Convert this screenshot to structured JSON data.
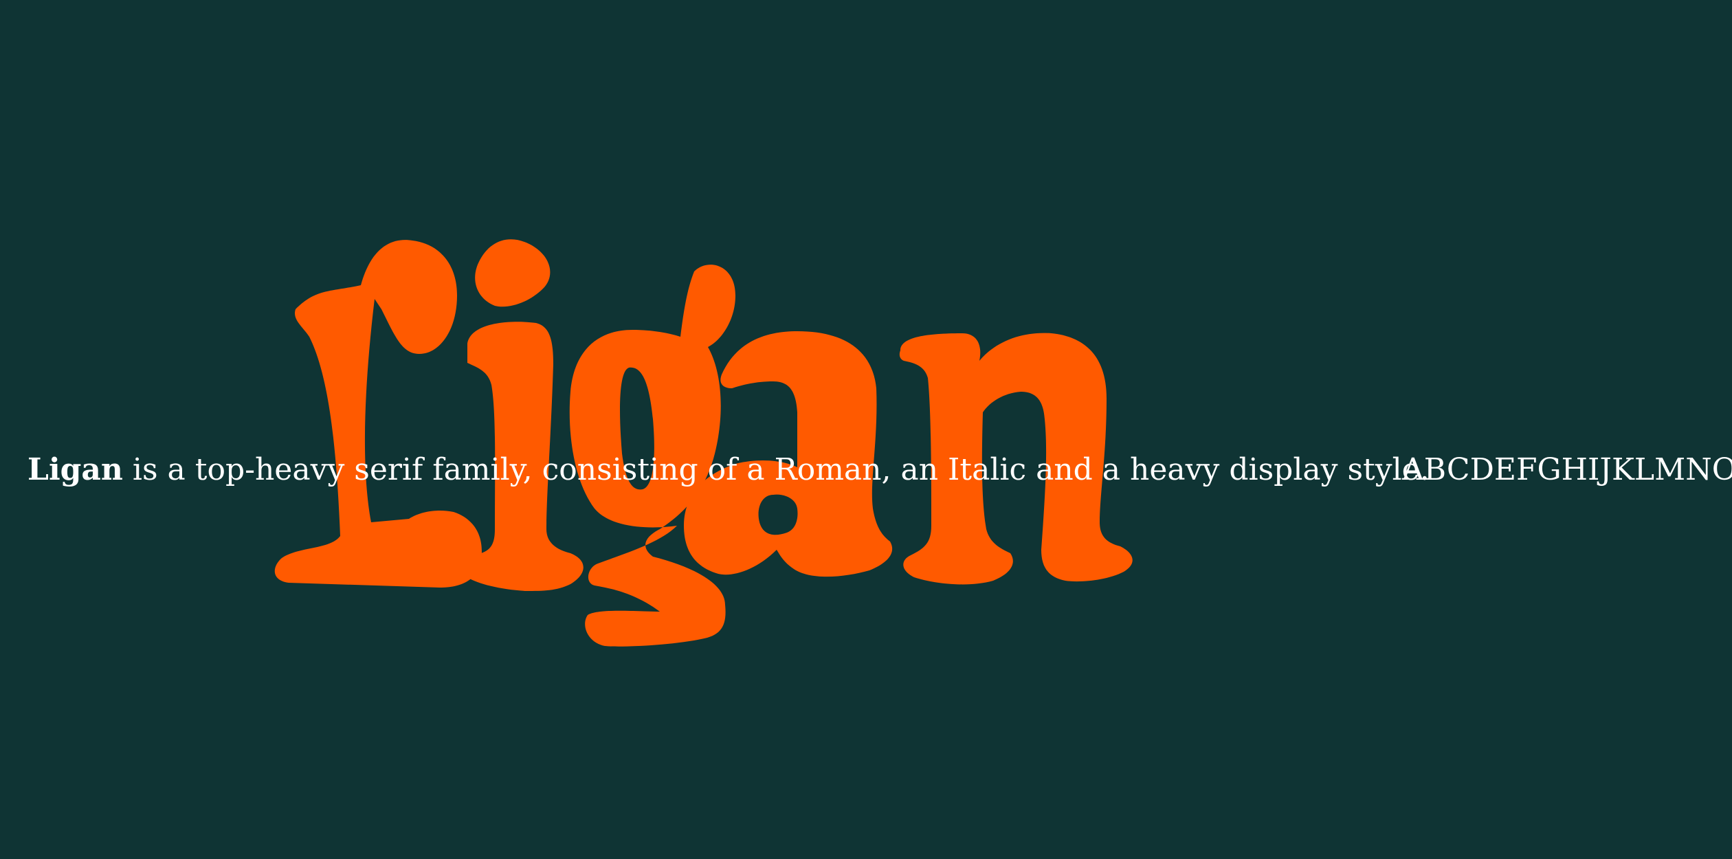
{
  "specimen": {
    "display_word": "Ligan",
    "family_name": "Ligan",
    "description": " is a top-heavy serif family, consisting of a Roman, an Italic and a heavy display style.",
    "alphabet": "ABCDEFGHIJKLMNO"
  },
  "colors": {
    "background": "#0f3434",
    "accent": "#ff5a00",
    "text": "#ffffff"
  }
}
